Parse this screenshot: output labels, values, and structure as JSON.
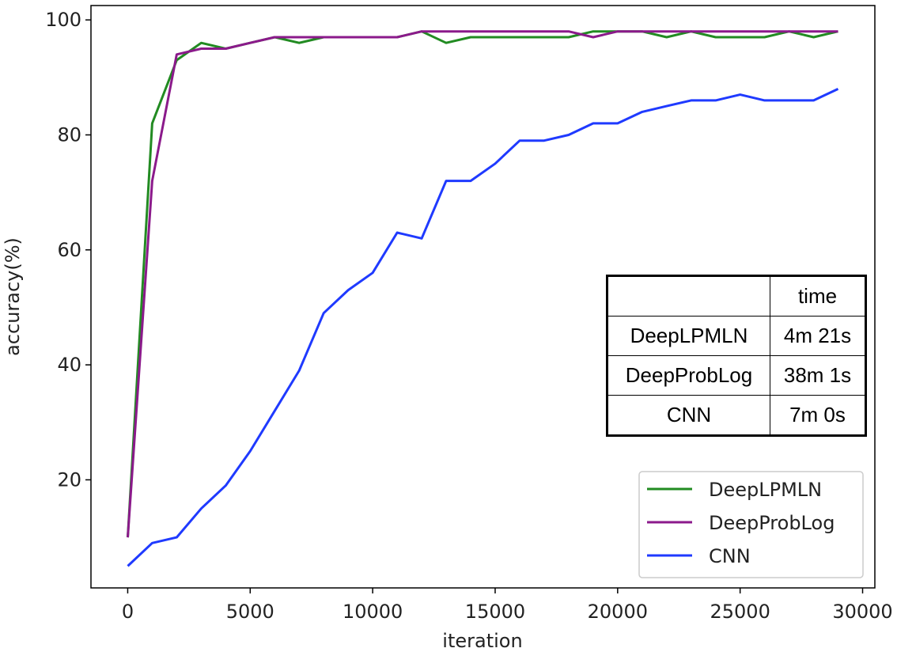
{
  "chart_data": {
    "type": "line",
    "title": "",
    "xlabel": "iteration",
    "ylabel": "accuracy(%)",
    "xlim": [
      -1500,
      30500
    ],
    "ylim": [
      1.2,
      102.5
    ],
    "xticks": [
      0,
      5000,
      10000,
      15000,
      20000,
      25000,
      30000
    ],
    "yticks": [
      20,
      40,
      60,
      80,
      100
    ],
    "grid": false,
    "legend_position": "bottom-right",
    "x": [
      0,
      1000,
      2000,
      3000,
      4000,
      5000,
      6000,
      7000,
      8000,
      9000,
      10000,
      11000,
      12000,
      13000,
      14000,
      15000,
      16000,
      17000,
      18000,
      19000,
      20000,
      21000,
      22000,
      23000,
      24000,
      25000,
      26000,
      27000,
      28000,
      29000
    ],
    "series": [
      {
        "name": "DeepLPMLN",
        "color": "#228b22",
        "values": [
          10,
          82,
          93,
          96,
          95,
          96,
          97,
          96,
          97,
          97,
          97,
          97,
          98,
          96,
          97,
          97,
          97,
          97,
          97,
          98,
          98,
          98,
          97,
          98,
          97,
          97,
          97,
          98,
          97,
          98
        ]
      },
      {
        "name": "DeepProbLog",
        "color": "#8b1a8b",
        "values": [
          10,
          72,
          94,
          95,
          95,
          96,
          97,
          97,
          97,
          97,
          97,
          97,
          98,
          98,
          98,
          98,
          98,
          98,
          98,
          97,
          98,
          98,
          98,
          98,
          98,
          98,
          98,
          98,
          98,
          98
        ]
      },
      {
        "name": "CNN",
        "color": "#1f3aff",
        "values": [
          5,
          9,
          10,
          15,
          19,
          25,
          32,
          39,
          49,
          53,
          56,
          63,
          62,
          72,
          72,
          75,
          79,
          79,
          80,
          82,
          82,
          84,
          85,
          86,
          86,
          87,
          86,
          86,
          86,
          88
        ]
      }
    ],
    "inset_table": {
      "header": [
        "",
        "time"
      ],
      "rows": [
        [
          "DeepLPMLN",
          "4m 21s"
        ],
        [
          "DeepProbLog",
          "38m 1s"
        ],
        [
          "CNN",
          "7m 0s"
        ]
      ]
    }
  }
}
